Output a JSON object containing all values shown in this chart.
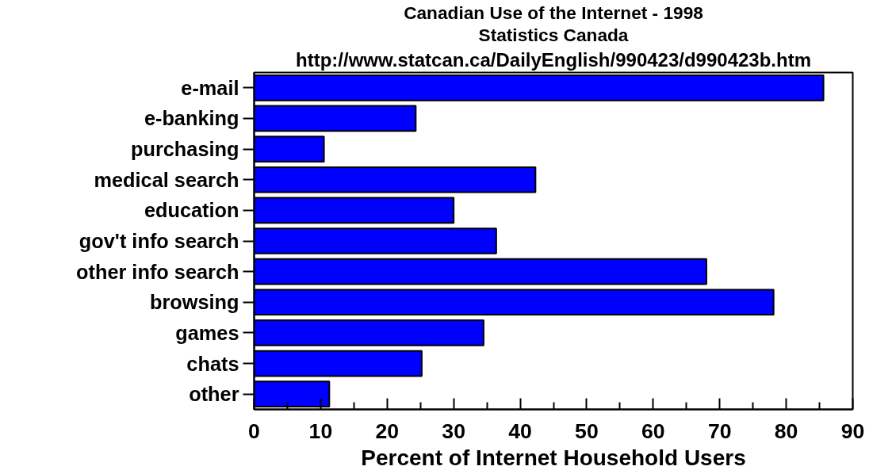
{
  "chart_data": {
    "type": "bar",
    "orientation": "horizontal",
    "title": "Canadian Use of the Internet - 1998",
    "subtitle": "Statistics Canada",
    "annotations": [
      "http://www.statcan.ca/DailyEnglish/990423/d990423b.htm"
    ],
    "xlabel": "Percent of Internet Household Users",
    "categories": [
      "e-mail",
      "e-banking",
      "purchasing",
      "medical search",
      "education",
      "gov't info search",
      "other info search",
      "browsing",
      "games",
      "chats",
      "other"
    ],
    "values": [
      85.6,
      24.3,
      10.5,
      42.3,
      30.0,
      36.4,
      68.0,
      78.1,
      34.5,
      25.2,
      11.3
    ],
    "color": "#0000ff",
    "xlim": [
      0,
      90
    ],
    "xticks": [
      0,
      10,
      20,
      30,
      40,
      50,
      60,
      70,
      80,
      90
    ],
    "grid": false
  }
}
